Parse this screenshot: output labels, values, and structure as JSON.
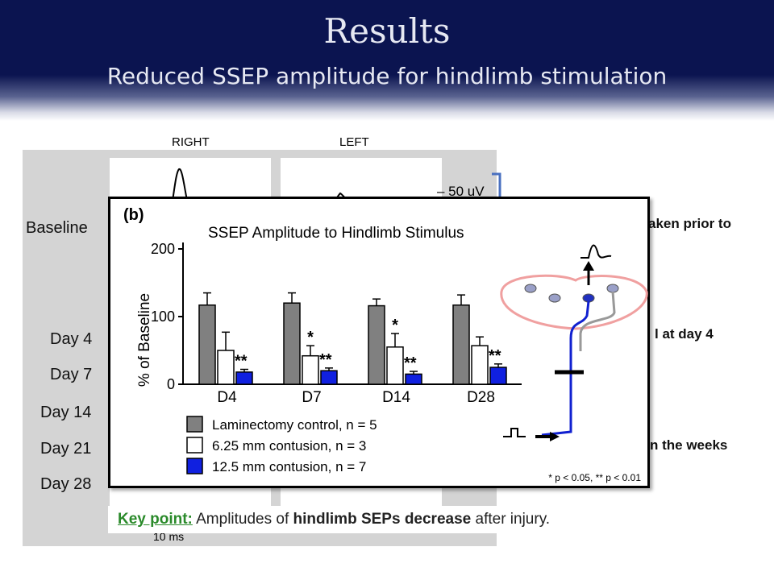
{
  "slide": {
    "title": "Results",
    "subtitle": "Reduced SSEP amplitude for hindlimb stimulation"
  },
  "figure": {
    "col_right": "RIGHT",
    "col_left": "LEFT",
    "scale_bar": "– 50 uV",
    "time_bar": "10 ms",
    "rows": [
      "Baseline",
      "Day 4",
      "Day 7",
      "Day 14",
      "Day 21",
      "Day 28"
    ]
  },
  "side_text": {
    "line1": "aken prior to",
    "line2": "l at day 4",
    "line3": "n the weeks"
  },
  "key_point": {
    "label": "Key point:",
    "pre": " Amplitudes of ",
    "bold1": "hindlimb SEPs decrease",
    "post": " after injury."
  },
  "chart_data": {
    "type": "bar",
    "panel_label": "(b)",
    "title": "SSEP Amplitude to Hindlimb Stimulus",
    "ylabel": "% of Baseline",
    "xlabel": "",
    "ylim": [
      0,
      200
    ],
    "yticks": [
      0,
      100,
      200
    ],
    "categories": [
      "D4",
      "D7",
      "D14",
      "D28"
    ],
    "series": [
      {
        "name": "Laminectomy control, n = 5",
        "color": "#808080",
        "values": [
          117,
          120,
          116,
          117
        ],
        "errors": [
          18,
          15,
          10,
          15
        ],
        "sig": [
          "",
          "",
          "",
          ""
        ]
      },
      {
        "name": "6.25 mm contusion, n = 3",
        "color": "#ffffff",
        "values": [
          50,
          42,
          55,
          57
        ],
        "errors": [
          27,
          15,
          20,
          13
        ],
        "sig": [
          "",
          "*",
          "*",
          ""
        ]
      },
      {
        "name": "12.5 mm contusion, n = 7",
        "color": "#1020e0",
        "values": [
          18,
          20,
          15,
          25
        ],
        "errors": [
          4,
          4,
          4,
          5
        ],
        "sig": [
          "**",
          "**",
          "**",
          "**"
        ]
      }
    ],
    "footnote": "* p < 0.05, ** p < 0.01"
  }
}
